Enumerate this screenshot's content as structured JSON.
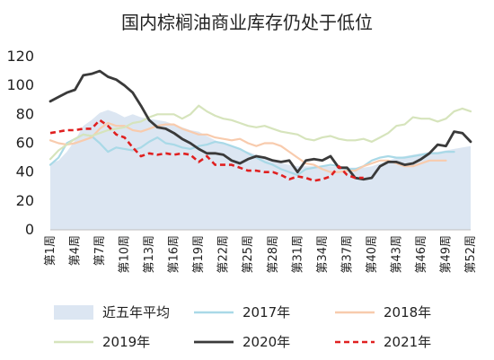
{
  "chart_data": {
    "type": "line",
    "title": "国内棕榈油商业库存仍处于低位",
    "xlabel": "",
    "ylabel": "",
    "ylim": [
      0,
      120
    ],
    "yticks": [
      "0",
      "20",
      "40",
      "60",
      "80",
      "100",
      "120"
    ],
    "grid": false,
    "legend_position": "bottom",
    "x": [
      "第1周",
      "第2周",
      "第3周",
      "第4周",
      "第5周",
      "第6周",
      "第7周",
      "第8周",
      "第9周",
      "第10周",
      "第11周",
      "第12周",
      "第13周",
      "第14周",
      "第15周",
      "第16周",
      "第17周",
      "第18周",
      "第19周",
      "第20周",
      "第21周",
      "第22周",
      "第23周",
      "第24周",
      "第25周",
      "第26周",
      "第27周",
      "第28周",
      "第29周",
      "第30周",
      "第31周",
      "第32周",
      "第33周",
      "第34周",
      "第35周",
      "第36周",
      "第37周",
      "第38周",
      "第39周",
      "第40周",
      "第41周",
      "第42周",
      "第43周",
      "第44周",
      "第45周",
      "第46周",
      "第47周",
      "第48周",
      "第49周",
      "第50周",
      "第51周",
      "第52周"
    ],
    "x_tick_labels": [
      "第1周",
      "第4周",
      "第7周",
      "第10周",
      "第13周",
      "第16周",
      "第19周",
      "第22周",
      "第25周",
      "第28周",
      "第31周",
      "第34周",
      "第37周",
      "第40周",
      "第43周",
      "第46周",
      "第49周",
      "第52周"
    ],
    "series": [
      {
        "name": "近五年平均",
        "type": "area",
        "color": "#dce6f2",
        "values": [
          46,
          48,
          54,
          62,
          72,
          76,
          81,
          83,
          81,
          78,
          80,
          78,
          77,
          76,
          75,
          73,
          71,
          69,
          68,
          65,
          62,
          60,
          58,
          56,
          54,
          52,
          50,
          48,
          46,
          45,
          44,
          44,
          44,
          44,
          44,
          43,
          43,
          43,
          43,
          44,
          46,
          48,
          50,
          51,
          52,
          53,
          54,
          54,
          55,
          56,
          57,
          58
        ]
      },
      {
        "name": "2017年",
        "type": "line",
        "color": "#a9d9e7",
        "values": [
          45,
          50,
          60,
          63,
          66,
          65,
          60,
          54,
          57,
          56,
          55,
          57,
          61,
          64,
          60,
          59,
          57,
          56,
          58,
          59,
          61,
          60,
          58,
          56,
          53,
          50,
          47,
          45,
          42,
          40,
          38,
          42,
          43,
          44,
          45,
          44,
          42,
          42,
          44,
          48,
          50,
          51,
          50,
          50,
          51,
          52,
          53,
          53,
          54,
          54,
          null,
          null
        ]
      },
      {
        "name": "2018年",
        "type": "line",
        "color": "#f8cbad",
        "values": [
          62,
          60,
          59,
          60,
          62,
          64,
          70,
          74,
          72,
          72,
          69,
          68,
          70,
          72,
          73,
          73,
          70,
          68,
          66,
          66,
          64,
          63,
          62,
          63,
          60,
          58,
          60,
          60,
          58,
          54,
          50,
          46,
          45,
          42,
          40,
          40,
          41,
          41,
          44,
          46,
          48,
          48,
          46,
          44,
          44,
          46,
          48,
          48,
          48,
          null,
          null,
          null
        ]
      },
      {
        "name": "2019年",
        "type": "line",
        "color": "#d6e4bc",
        "values": [
          49,
          55,
          59,
          63,
          66,
          65,
          67,
          69,
          70,
          71,
          74,
          75,
          78,
          80,
          80,
          80,
          77,
          80,
          86,
          82,
          79,
          77,
          76,
          74,
          72,
          71,
          72,
          70,
          68,
          67,
          66,
          63,
          62,
          64,
          65,
          63,
          62,
          62,
          63,
          61,
          64,
          67,
          72,
          73,
          78,
          77,
          77,
          75,
          77,
          82,
          84,
          82
        ]
      },
      {
        "name": "2020年",
        "type": "line",
        "color": "#3a3a3a",
        "values": [
          89,
          92,
          95,
          97,
          107,
          108,
          110,
          106,
          104,
          100,
          95,
          86,
          76,
          71,
          70,
          67,
          63,
          60,
          56,
          53,
          53,
          52,
          48,
          46,
          49,
          51,
          50,
          48,
          47,
          48,
          40,
          48,
          49,
          48,
          51,
          43,
          43,
          36,
          35,
          36,
          44,
          47,
          47,
          45,
          46,
          49,
          53,
          59,
          58,
          68,
          67,
          61
        ]
      },
      {
        "name": "2021年",
        "type": "dashed",
        "color": "#e02020",
        "values": [
          67,
          68,
          69,
          69,
          70,
          70,
          76,
          72,
          66,
          64,
          57,
          51,
          53,
          52,
          53,
          52,
          53,
          52,
          47,
          51,
          45,
          45,
          45,
          43,
          41,
          41,
          40,
          40,
          38,
          35,
          37,
          36,
          34,
          35,
          37,
          44,
          38,
          36,
          36,
          null,
          null,
          null,
          null,
          null,
          null,
          null,
          null,
          null,
          null,
          null,
          null,
          null
        ]
      }
    ]
  }
}
